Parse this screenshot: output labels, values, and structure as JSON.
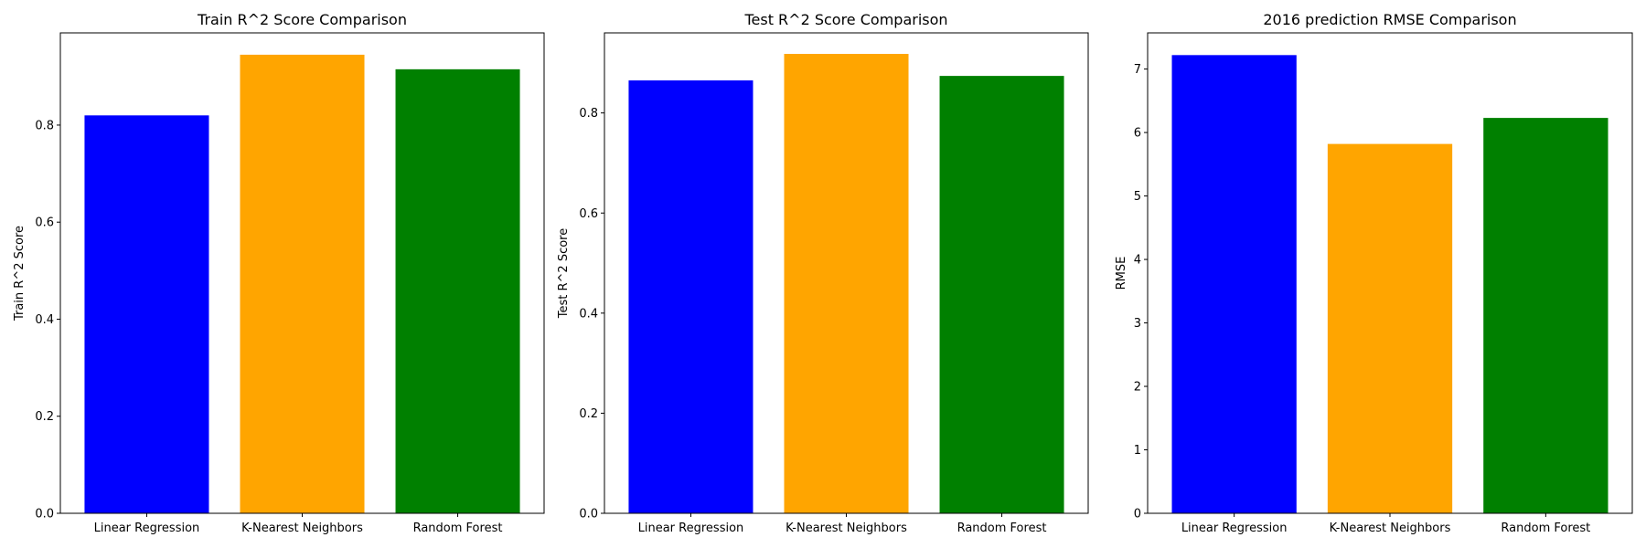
{
  "chart_data": [
    {
      "type": "bar",
      "title": "Train R^2 Score Comparison",
      "xlabel": "",
      "ylabel": "Train R^2 Score",
      "categories": [
        "Linear Regression",
        "K-Nearest Neighbors",
        "Random Forest"
      ],
      "values": [
        0.82,
        0.945,
        0.915
      ],
      "colors": [
        "#0000ff",
        "#ffa500",
        "#008000"
      ],
      "ylim": [
        0,
        0.99
      ],
      "yticks": [
        0.0,
        0.2,
        0.4,
        0.6,
        0.8
      ],
      "ytick_labels": [
        "0.0",
        "0.2",
        "0.4",
        "0.6",
        "0.8"
      ],
      "grid": false
    },
    {
      "type": "bar",
      "title": "Test R^2 Score Comparison",
      "xlabel": "",
      "ylabel": "Test R^2 Score",
      "categories": [
        "Linear Regression",
        "K-Nearest Neighbors",
        "Random Forest"
      ],
      "values": [
        0.865,
        0.918,
        0.874
      ],
      "colors": [
        "#0000ff",
        "#ffa500",
        "#008000"
      ],
      "ylim": [
        0,
        0.96
      ],
      "yticks": [
        0.0,
        0.2,
        0.4,
        0.6,
        0.8
      ],
      "ytick_labels": [
        "0.0",
        "0.2",
        "0.4",
        "0.6",
        "0.8"
      ],
      "grid": false
    },
    {
      "type": "bar",
      "title": "2016 prediction RMSE Comparison",
      "xlabel": "",
      "ylabel": "RMSE",
      "categories": [
        "Linear Regression",
        "K-Nearest Neighbors",
        "Random Forest"
      ],
      "values": [
        7.22,
        5.82,
        6.23
      ],
      "colors": [
        "#0000ff",
        "#ffa500",
        "#008000"
      ],
      "ylim": [
        0,
        7.57
      ],
      "yticks": [
        0,
        1,
        2,
        3,
        4,
        5,
        6,
        7
      ],
      "ytick_labels": [
        "0",
        "1",
        "2",
        "3",
        "4",
        "5",
        "6",
        "7"
      ],
      "grid": false
    }
  ]
}
